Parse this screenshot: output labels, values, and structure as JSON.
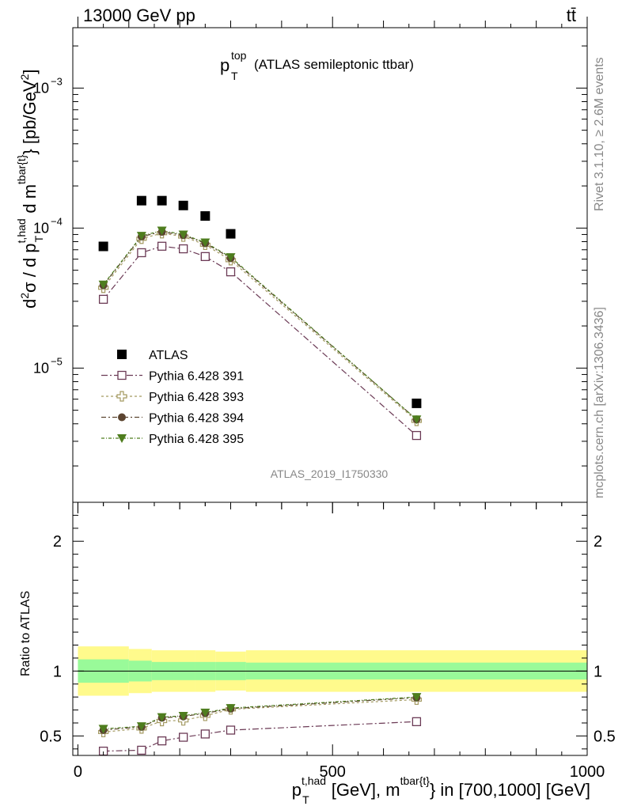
{
  "header": {
    "left": "13000 GeV pp",
    "right": "tt̄"
  },
  "side_labels": {
    "rivet": "Rivet 3.1.10, ≥ 2.6M events",
    "mcplots": "mcplots.cern.ch [arXiv:1306.3436]"
  },
  "chart_data": {
    "type": "scatter",
    "title_main": "p",
    "title_sup": "top",
    "title_sub": "T",
    "title_rest": "(ATLAS semileptonic ttbar)",
    "watermark": "ATLAS_2019_I1750330",
    "xlabel": "p_T^{t,had} [GeV], m^{tbar{t}} in [700,1000] [GeV]",
    "ylabel": "d²σ / d p_T^{t,had} d m^{tbar{t}} [pb/GeV²]",
    "ratio_ylabel": "Ratio to ATLAS",
    "xlim": [
      -10,
      1000
    ],
    "ylim_main": [
      1.1e-06,
      0.0027
    ],
    "ylim_ratio": [
      0.35,
      2.3
    ],
    "x_ticks": [
      "0",
      "500",
      "1000"
    ],
    "y_ticks_main": [
      {
        "base": "10",
        "exp": "−5"
      },
      {
        "base": "10",
        "exp": "−4"
      },
      {
        "base": "10",
        "exp": "−3"
      }
    ],
    "y_ticks_ratio": [
      "0.5",
      "1",
      "2"
    ],
    "x": [
      50,
      125,
      165,
      207,
      250,
      300,
      665
    ],
    "bin_edges": [
      0,
      100,
      145,
      185,
      230,
      270,
      330,
      1000
    ],
    "atlas": [
      7.4e-05,
      0.000157,
      0.000157,
      0.000145,
      0.000122,
      9.1e-05,
      5.6e-06
    ],
    "band_inner": [
      0.09,
      0.08,
      0.07,
      0.07,
      0.07,
      0.07,
      0.065
    ],
    "band_outer": [
      0.19,
      0.17,
      0.16,
      0.16,
      0.16,
      0.15,
      0.16
    ],
    "series": [
      {
        "name": "Pythia 6.428 391",
        "color": "#6b3a55",
        "marker": "open-square",
        "values": [
          3.1e-05,
          6.67e-05,
          7.42e-05,
          7.11e-05,
          6.26e-05,
          4.87e-05,
          3.3e-06
        ],
        "ratio": [
          0.383,
          0.39,
          0.462,
          0.49,
          0.515,
          0.545,
          0.61
        ]
      },
      {
        "name": "Pythia 6.428 393",
        "color": "#a49a62",
        "marker": "open-cross",
        "values": [
          3.75e-05,
          8.4e-05,
          9.2e-05,
          8.7e-05,
          7.6e-05,
          5.9e-05,
          4.2e-06
        ],
        "ratio": [
          0.53,
          0.558,
          0.615,
          0.62,
          0.655,
          0.705,
          0.78
        ]
      },
      {
        "name": "Pythia 6.428 394",
        "color": "#5b4430",
        "marker": "filled-circle",
        "values": [
          3.9e-05,
          8.7e-05,
          9.4e-05,
          8.9e-05,
          7.8e-05,
          6.1e-05,
          4.3e-06
        ],
        "ratio": [
          0.545,
          0.57,
          0.64,
          0.65,
          0.675,
          0.71,
          0.795
        ]
      },
      {
        "name": "Pythia 6.428 395",
        "color": "#4e7d1e",
        "marker": "filled-triangle",
        "values": [
          3.95e-05,
          8.8e-05,
          9.6e-05,
          9e-05,
          7.9e-05,
          6.2e-05,
          4.3e-06
        ],
        "ratio": [
          0.555,
          0.575,
          0.645,
          0.655,
          0.68,
          0.715,
          0.8
        ]
      }
    ],
    "legend": {
      "position": "middle-left",
      "entries": [
        "ATLAS",
        "Pythia 6.428 391",
        "Pythia 6.428 393",
        "Pythia 6.428 394",
        "Pythia 6.428 395"
      ]
    },
    "colors": {
      "band_outer": "#fffa8c",
      "band_inner": "#99fa99",
      "data": "#000000"
    }
  }
}
